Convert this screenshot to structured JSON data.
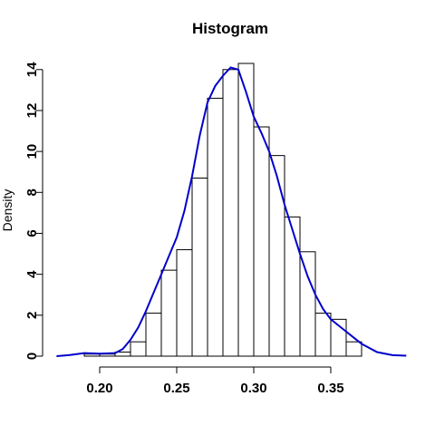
{
  "chart_data": {
    "type": "bar",
    "title": "Histogram",
    "xlabel": "",
    "ylabel": "Density",
    "xlim": [
      0.17,
      0.4
    ],
    "ylim": [
      0,
      14.3
    ],
    "x_ticks": [
      0.2,
      0.25,
      0.3,
      0.35
    ],
    "x_tick_labels": [
      "0.20",
      "0.25",
      "0.30",
      "0.35"
    ],
    "y_ticks": [
      0,
      2,
      4,
      6,
      8,
      10,
      12,
      14
    ],
    "y_tick_labels": [
      "0",
      "2",
      "4",
      "6",
      "8",
      "10",
      "12",
      "14"
    ],
    "grid": false,
    "legend": "none",
    "bins": [
      {
        "x0": 0.19,
        "x1": 0.2,
        "value": 0.1
      },
      {
        "x0": 0.2,
        "x1": 0.21,
        "value": 0.1
      },
      {
        "x0": 0.21,
        "x1": 0.22,
        "value": 0.2
      },
      {
        "x0": 0.22,
        "x1": 0.23,
        "value": 0.7
      },
      {
        "x0": 0.23,
        "x1": 0.24,
        "value": 2.1
      },
      {
        "x0": 0.24,
        "x1": 0.25,
        "value": 4.2
      },
      {
        "x0": 0.25,
        "x1": 0.26,
        "value": 5.2
      },
      {
        "x0": 0.26,
        "x1": 0.27,
        "value": 8.7
      },
      {
        "x0": 0.27,
        "x1": 0.28,
        "value": 12.6
      },
      {
        "x0": 0.28,
        "x1": 0.29,
        "value": 14.0
      },
      {
        "x0": 0.29,
        "x1": 0.3,
        "value": 14.3
      },
      {
        "x0": 0.3,
        "x1": 0.31,
        "value": 11.2
      },
      {
        "x0": 0.31,
        "x1": 0.32,
        "value": 9.8
      },
      {
        "x0": 0.32,
        "x1": 0.33,
        "value": 6.8
      },
      {
        "x0": 0.33,
        "x1": 0.34,
        "value": 5.1
      },
      {
        "x0": 0.34,
        "x1": 0.35,
        "value": 2.1
      },
      {
        "x0": 0.35,
        "x1": 0.36,
        "value": 1.8
      },
      {
        "x0": 0.36,
        "x1": 0.37,
        "value": 0.7
      }
    ],
    "density_curve": {
      "color": "#0000cc",
      "x": [
        0.172,
        0.18,
        0.19,
        0.2,
        0.21,
        0.215,
        0.22,
        0.225,
        0.23,
        0.235,
        0.24,
        0.245,
        0.25,
        0.255,
        0.26,
        0.265,
        0.27,
        0.275,
        0.28,
        0.285,
        0.29,
        0.295,
        0.3,
        0.305,
        0.31,
        0.315,
        0.32,
        0.325,
        0.33,
        0.335,
        0.34,
        0.345,
        0.35,
        0.355,
        0.36,
        0.365,
        0.37,
        0.38,
        0.39,
        0.399
      ],
      "y": [
        0.0,
        0.05,
        0.15,
        0.12,
        0.15,
        0.35,
        0.8,
        1.4,
        2.2,
        3.1,
        4.0,
        4.9,
        5.8,
        7.1,
        8.8,
        10.8,
        12.4,
        13.2,
        13.7,
        14.1,
        14.0,
        12.9,
        11.7,
        10.9,
        10.0,
        8.8,
        7.4,
        6.2,
        5.0,
        3.9,
        3.0,
        2.3,
        1.8,
        1.5,
        1.2,
        0.9,
        0.6,
        0.2,
        0.05,
        0.02
      ]
    },
    "bar_fill": "#ffffff",
    "bar_stroke": "#000000"
  }
}
